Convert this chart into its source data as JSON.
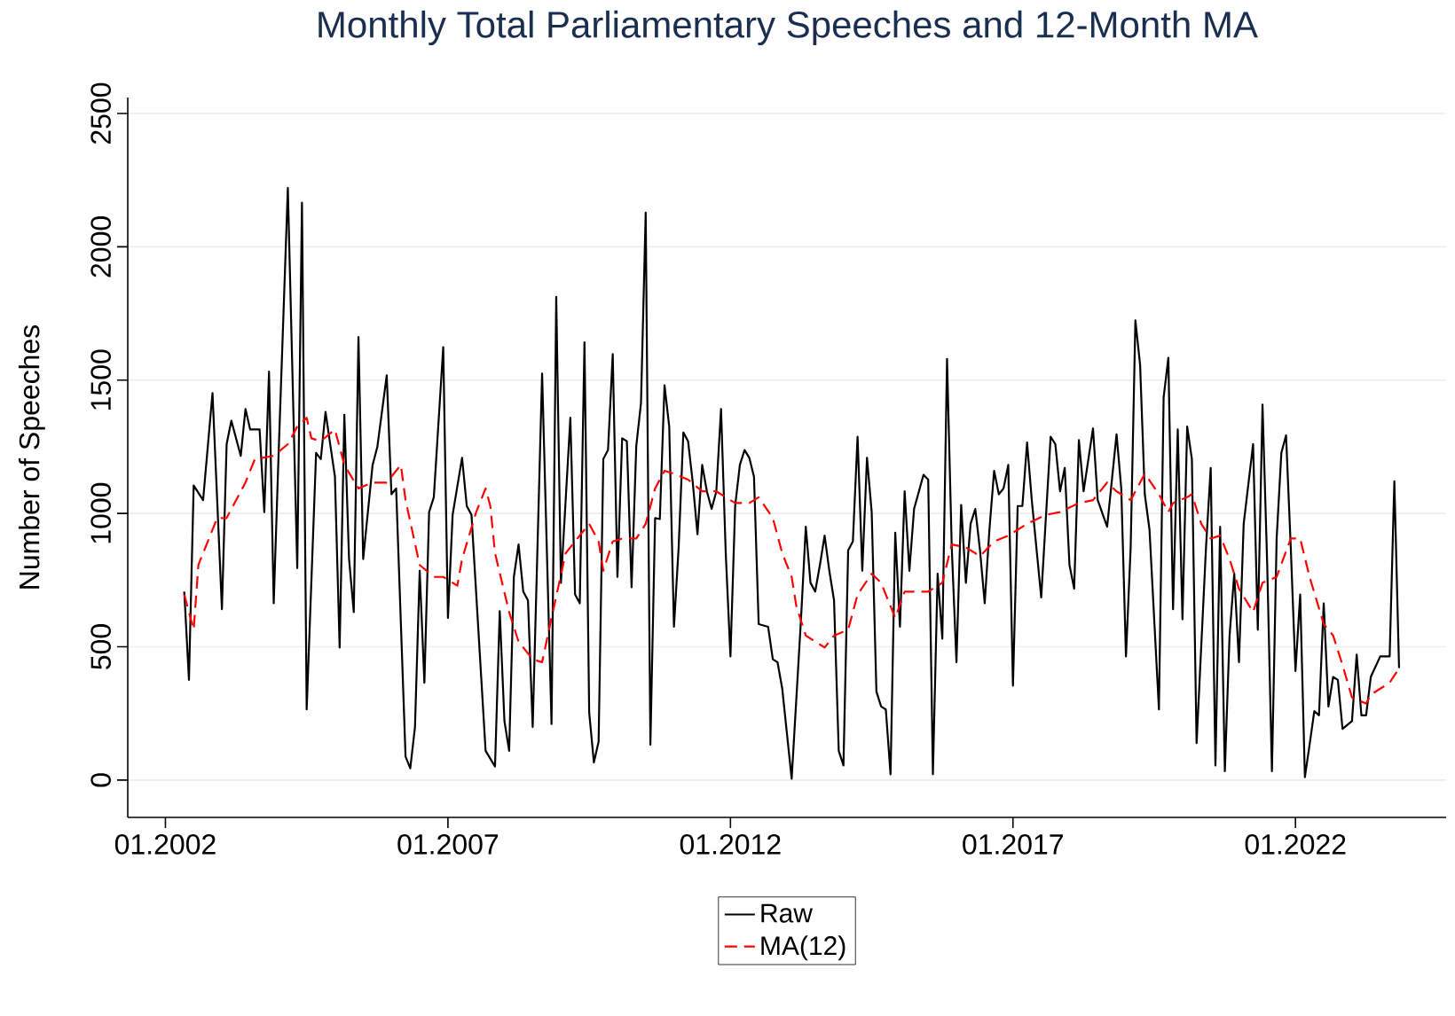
{
  "chart_data": {
    "type": "line",
    "title": "Monthly Total Parliamentary Speeches and 12-Month MA",
    "ylabel": "Number of Speeches",
    "xlim": [
      "2001-05",
      "2024-09"
    ],
    "ylim": [
      -140,
      2560
    ],
    "xticks": [
      {
        "value": "2002-01",
        "label": "01.2002"
      },
      {
        "value": "2007-01",
        "label": "01.2007"
      },
      {
        "value": "2012-01",
        "label": "01.2012"
      },
      {
        "value": "2017-01",
        "label": "01.2017"
      },
      {
        "value": "2022-01",
        "label": "01.2022"
      }
    ],
    "yticks": [
      0,
      500,
      1000,
      1500,
      2000,
      2500
    ],
    "grid": "y",
    "legend": "bottom",
    "marker": "none",
    "series": [
      {
        "name": "Raw",
        "color": "#000000",
        "line_style": "solid",
        "x": [
          "2002-05",
          "2002-06",
          "2002-07",
          "2002-09",
          "2002-11",
          "2003-01",
          "2003-02",
          "2003-03",
          "2003-05",
          "2003-06",
          "2003-07",
          "2003-09",
          "2003-10",
          "2003-11",
          "2003-12",
          "2004-01",
          "2004-03",
          "2004-05",
          "2004-06",
          "2004-07",
          "2004-09",
          "2004-10",
          "2004-11",
          "2005-01",
          "2005-02",
          "2005-03",
          "2005-04",
          "2005-05",
          "2005-06",
          "2005-07",
          "2005-09",
          "2005-10",
          "2005-12",
          "2006-01",
          "2006-02",
          "2006-04",
          "2006-05",
          "2006-06",
          "2006-07",
          "2006-08",
          "2006-09",
          "2006-10",
          "2006-12",
          "2007-01",
          "2007-02",
          "2007-04",
          "2007-05",
          "2007-06",
          "2007-09",
          "2007-11",
          "2007-12",
          "2008-01",
          "2008-02",
          "2008-03",
          "2008-04",
          "2008-05",
          "2008-06",
          "2008-07",
          "2008-09",
          "2008-11",
          "2008-12",
          "2009-01",
          "2009-03",
          "2009-04",
          "2009-05",
          "2009-06",
          "2009-07",
          "2009-08",
          "2009-09",
          "2009-10",
          "2009-11",
          "2009-12",
          "2010-01",
          "2010-02",
          "2010-03",
          "2010-04",
          "2010-05",
          "2010-06",
          "2010-07",
          "2010-08",
          "2010-09",
          "2010-10",
          "2010-11",
          "2010-12",
          "2011-01",
          "2011-02",
          "2011-03",
          "2011-04",
          "2011-05",
          "2011-06",
          "2011-07",
          "2011-08",
          "2011-09",
          "2011-10",
          "2011-11",
          "2011-12",
          "2012-01",
          "2012-02",
          "2012-03",
          "2012-04",
          "2012-05",
          "2012-06",
          "2012-07",
          "2012-09",
          "2012-10",
          "2012-11",
          "2012-12",
          "2013-02",
          "2013-04",
          "2013-05",
          "2013-06",
          "2013-07",
          "2013-08",
          "2013-09",
          "2013-10",
          "2013-11",
          "2013-12",
          "2014-01",
          "2014-02",
          "2014-03",
          "2014-04",
          "2014-05",
          "2014-06",
          "2014-07",
          "2014-08",
          "2014-09",
          "2014-10",
          "2014-11",
          "2014-12",
          "2015-01",
          "2015-02",
          "2015-03",
          "2015-04",
          "2015-06",
          "2015-07",
          "2015-08",
          "2015-09",
          "2015-10",
          "2015-11",
          "2015-12",
          "2016-01",
          "2016-02",
          "2016-03",
          "2016-04",
          "2016-05",
          "2016-06",
          "2016-07",
          "2016-08",
          "2016-09",
          "2016-10",
          "2016-11",
          "2016-12",
          "2017-01",
          "2017-02",
          "2017-03",
          "2017-04",
          "2017-05",
          "2017-07",
          "2017-09",
          "2017-10",
          "2017-11",
          "2017-12",
          "2018-01",
          "2018-02",
          "2018-03",
          "2018-04",
          "2018-06",
          "2018-07",
          "2018-09",
          "2018-11",
          "2018-12",
          "2019-01",
          "2019-02",
          "2019-03",
          "2019-04",
          "2019-05",
          "2019-06",
          "2019-08",
          "2019-09",
          "2019-10",
          "2019-11",
          "2019-12",
          "2020-01",
          "2020-02",
          "2020-03",
          "2020-04",
          "2020-06",
          "2020-07",
          "2020-08",
          "2020-09",
          "2020-10",
          "2020-11",
          "2020-12",
          "2021-01",
          "2021-02",
          "2021-04",
          "2021-05",
          "2021-06",
          "2021-07",
          "2021-08",
          "2021-09",
          "2021-10",
          "2021-11",
          "2021-12",
          "2022-01",
          "2022-02",
          "2022-03",
          "2022-04",
          "2022-05",
          "2022-06",
          "2022-07",
          "2022-08",
          "2022-09",
          "2022-10",
          "2022-11",
          "2023-01",
          "2023-02",
          "2023-03",
          "2023-04",
          "2023-05",
          "2023-07",
          "2023-09",
          "2023-10",
          "2023-11"
        ],
        "values": [
          707,
          376,
          1105,
          1050,
          1452,
          641,
          1260,
          1348,
          1216,
          1392,
          1315,
          1315,
          1005,
          1532,
          663,
          1204,
          2221,
          795,
          2166,
          265,
          1227,
          1204,
          1381,
          1138,
          497,
          1370,
          829,
          630,
          1662,
          829,
          1182,
          1249,
          1518,
          1072,
          1094,
          88,
          44,
          199,
          785,
          365,
          1005,
          1061,
          1624,
          608,
          995,
          1209,
          1028,
          995,
          110,
          51,
          634,
          221,
          110,
          762,
          884,
          707,
          674,
          199,
          1525,
          210,
          1812,
          740,
          1359,
          696,
          663,
          1642,
          254,
          66,
          144,
          1204,
          1238,
          1598,
          762,
          1282,
          1271,
          723,
          1253,
          1414,
          2128,
          133,
          983,
          979,
          1481,
          1326,
          575,
          873,
          1304,
          1271,
          1116,
          922,
          1182,
          1083,
          1017,
          1083,
          1392,
          851,
          464,
          1028,
          1182,
          1238,
          1209,
          1138,
          585,
          575,
          453,
          442,
          343,
          5,
          608,
          950,
          740,
          707,
          807,
          917,
          785,
          674,
          110,
          55,
          862,
          895,
          1288,
          785,
          1209,
          1005,
          332,
          276,
          265,
          22,
          928,
          575,
          1083,
          785,
          1017,
          1145,
          1127,
          22,
          774,
          530,
          1580,
          873,
          442,
          1032,
          740,
          961,
          1017,
          862,
          663,
          939,
          1160,
          1072,
          1094,
          1182,
          354,
          1028,
          1028,
          1266,
          1050,
          685,
          1288,
          1260,
          1083,
          1171,
          807,
          718,
          1275,
          1083,
          1319,
          1050,
          950,
          1297,
          1094,
          464,
          873,
          1724,
          1558,
          1072,
          939,
          265,
          1436,
          1584,
          641,
          1315,
          603,
          1326,
          1204,
          139,
          873,
          1171,
          55,
          950,
          33,
          541,
          774,
          442,
          961,
          1260,
          564,
          1408,
          807,
          33,
          906,
          1227,
          1293,
          873,
          409,
          696,
          11,
          133,
          259,
          243,
          663,
          276,
          387,
          376,
          192,
          221,
          471,
          243,
          243,
          387,
          464,
          464,
          1121,
          420
        ]
      },
      {
        "name": "MA(12)",
        "color": "#ff0000",
        "line_style": "dashed",
        "x": [
          "2002-05",
          "2002-07",
          "2002-08",
          "2002-12",
          "2003-02",
          "2003-06",
          "2003-08",
          "2003-12",
          "2004-03",
          "2004-05",
          "2004-07",
          "2004-08",
          "2004-10",
          "2005-01",
          "2005-03",
          "2005-06",
          "2005-09",
          "2005-12",
          "2006-03",
          "2006-04",
          "2006-07",
          "2006-10",
          "2006-12",
          "2007-03",
          "2007-04",
          "2007-07",
          "2007-09",
          "2007-10",
          "2007-11",
          "2008-02",
          "2008-04",
          "2008-07",
          "2008-09",
          "2008-11",
          "2009-02",
          "2009-04",
          "2009-07",
          "2009-09",
          "2009-10",
          "2009-12",
          "2010-02",
          "2010-05",
          "2010-07",
          "2010-09",
          "2010-11",
          "2011-01",
          "2011-04",
          "2011-07",
          "2011-10",
          "2012-02",
          "2012-05",
          "2012-07",
          "2012-10",
          "2012-12",
          "2013-02",
          "2013-03",
          "2013-05",
          "2013-09",
          "2013-11",
          "2014-02",
          "2014-04",
          "2014-07",
          "2014-09",
          "2014-12",
          "2015-02",
          "2015-07",
          "2015-10",
          "2015-12",
          "2016-03",
          "2016-06",
          "2016-09",
          "2016-12",
          "2017-04",
          "2017-08",
          "2017-11",
          "2018-03",
          "2018-06",
          "2018-09",
          "2018-11",
          "2019-02",
          "2019-05",
          "2019-08",
          "2019-10",
          "2019-11",
          "2020-02",
          "2020-03",
          "2020-05",
          "2020-07",
          "2020-09",
          "2020-11",
          "2021-01",
          "2021-04",
          "2021-06",
          "2021-09",
          "2021-12",
          "2022-02",
          "2022-04",
          "2022-07",
          "2022-09",
          "2022-11",
          "2023-01",
          "2023-04",
          "2023-05",
          "2023-07",
          "2023-09",
          "2023-11"
        ],
        "values": [
          696,
          564,
          807,
          983,
          983,
          1116,
          1204,
          1216,
          1260,
          1326,
          1359,
          1282,
          1271,
          1315,
          1182,
          1094,
          1116,
          1116,
          1182,
          1050,
          807,
          762,
          762,
          729,
          829,
          1005,
          1094,
          1028,
          851,
          630,
          519,
          453,
          442,
          608,
          851,
          895,
          961,
          895,
          785,
          895,
          906,
          906,
          961,
          1094,
          1160,
          1149,
          1127,
          1083,
          1083,
          1039,
          1039,
          1061,
          983,
          851,
          762,
          652,
          542,
          497,
          542,
          564,
          696,
          774,
          740,
          608,
          707,
          707,
          740,
          884,
          873,
          840,
          895,
          917,
          961,
          995,
          1005,
          1039,
          1050,
          1116,
          1083,
          1050,
          1149,
          1072,
          1005,
          1039,
          1061,
          1072,
          961,
          906,
          917,
          829,
          718,
          630,
          740,
          762,
          906,
          906,
          762,
          585,
          542,
          431,
          310,
          287,
          320,
          343,
          365,
          420
        ]
      }
    ]
  }
}
